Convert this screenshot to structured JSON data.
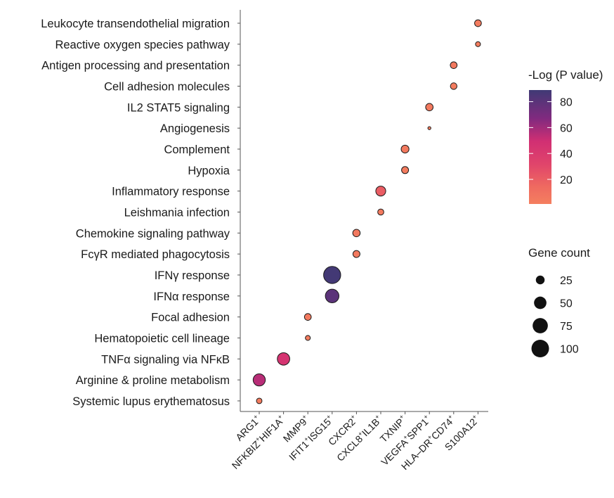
{
  "chart_data": {
    "type": "dotplot",
    "title": "",
    "xlabel": "",
    "ylabel": "",
    "pathways": [
      "Leukocyte transendothelial migration",
      "Reactive oxygen species pathway",
      "Antigen processing and presentation",
      "Cell adhesion molecules",
      "IL2 STAT5 signaling",
      "Angiogenesis",
      "Complement",
      "Hypoxia",
      "Inflammatory response",
      "Leishmania infection",
      "Chemokine signaling pathway",
      "FcγR mediated phagocytosis",
      "IFNγ response",
      "IFNα response",
      "Focal adhesion",
      "Hematopoietic cell lineage",
      "TNFα signaling via NFκB",
      "Arginine & proline metabolism",
      "Systemic lupus erythematosus"
    ],
    "clusters": [
      {
        "label": "ARG1",
        "parts": [
          [
            "ARG1",
            "+"
          ]
        ]
      },
      {
        "label": "NFKBIZ+HIF1A+",
        "parts": [
          [
            "NFKBIZ",
            "+"
          ],
          [
            "HIF1A",
            "+"
          ]
        ]
      },
      {
        "label": "MMP9+",
        "parts": [
          [
            "MMP9",
            "+"
          ]
        ]
      },
      {
        "label": "IFIT1+ISG15+",
        "parts": [
          [
            "IFIT1",
            "+"
          ],
          [
            "ISG15",
            "+"
          ]
        ]
      },
      {
        "label": "CXCR2+",
        "parts": [
          [
            "CXCR2",
            "+"
          ]
        ]
      },
      {
        "label": "CXCL8+IL1B+",
        "parts": [
          [
            "CXCL8",
            "+"
          ],
          [
            "IL1B",
            "+"
          ]
        ]
      },
      {
        "label": "TXNIP+",
        "parts": [
          [
            "TXNIP",
            "+"
          ]
        ]
      },
      {
        "label": "VEGFA+SPP1+",
        "parts": [
          [
            "VEGFA",
            "+"
          ],
          [
            "SPP1",
            "+"
          ]
        ]
      },
      {
        "label": "HLA-DR+CD74+",
        "parts": [
          [
            "HLA–DR",
            "+"
          ],
          [
            "CD74",
            "+"
          ]
        ]
      },
      {
        "label": "S100A12+",
        "parts": [
          [
            "S100A12",
            "+"
          ]
        ]
      }
    ],
    "points": [
      {
        "pathway": "Leukocyte transendothelial migration",
        "cluster": "S100A12+",
        "gene_count": 15,
        "neg_log_p": 3
      },
      {
        "pathway": "Reactive oxygen species pathway",
        "cluster": "S100A12+",
        "gene_count": 8,
        "neg_log_p": 2
      },
      {
        "pathway": "Antigen processing and presentation",
        "cluster": "HLA-DR+CD74+",
        "gene_count": 15,
        "neg_log_p": 5
      },
      {
        "pathway": "Cell adhesion molecules",
        "cluster": "HLA-DR+CD74+",
        "gene_count": 14,
        "neg_log_p": 3
      },
      {
        "pathway": "IL2 STAT5 signaling",
        "cluster": "VEGFA+SPP1+",
        "gene_count": 18,
        "neg_log_p": 4
      },
      {
        "pathway": "Angiogenesis",
        "cluster": "VEGFA+SPP1+",
        "gene_count": 3,
        "neg_log_p": 2
      },
      {
        "pathway": "Complement",
        "cluster": "TXNIP+",
        "gene_count": 20,
        "neg_log_p": 4
      },
      {
        "pathway": "Hypoxia",
        "cluster": "TXNIP+",
        "gene_count": 16,
        "neg_log_p": 3
      },
      {
        "pathway": "Inflammatory response",
        "cluster": "CXCL8+IL1B+",
        "gene_count": 32,
        "neg_log_p": 20
      },
      {
        "pathway": "Leishmania infection",
        "cluster": "CXCL8+IL1B+",
        "gene_count": 12,
        "neg_log_p": 4
      },
      {
        "pathway": "Chemokine signaling pathway",
        "cluster": "CXCR2+",
        "gene_count": 18,
        "neg_log_p": 5
      },
      {
        "pathway": "FcγR mediated phagocytosis",
        "cluster": "CXCR2+",
        "gene_count": 16,
        "neg_log_p": 4
      },
      {
        "pathway": "IFNγ response",
        "cluster": "IFIT1+ISG15+",
        "gene_count": 95,
        "neg_log_p": 88
      },
      {
        "pathway": "IFNα response",
        "cluster": "IFIT1+ISG15+",
        "gene_count": 60,
        "neg_log_p": 80
      },
      {
        "pathway": "Focal adhesion",
        "cluster": "MMP9+",
        "gene_count": 15,
        "neg_log_p": 4
      },
      {
        "pathway": "Hematopoietic cell lineage",
        "cluster": "MMP9+",
        "gene_count": 8,
        "neg_log_p": 3
      },
      {
        "pathway": "TNFα signaling via NFκB",
        "cluster": "NFKBIZ+HIF1A+",
        "gene_count": 50,
        "neg_log_p": 45
      },
      {
        "pathway": "Arginine & proline metabolism",
        "cluster": "ARG1",
        "gene_count": 48,
        "neg_log_p": 55
      },
      {
        "pathway": "Systemic lupus erythematosus",
        "cluster": "ARG1",
        "gene_count": 10,
        "neg_log_p": 3
      }
    ],
    "color_legend": {
      "title": "-Log (P value)",
      "ticks": [
        20,
        40,
        60,
        80
      ],
      "range": [
        1,
        89
      ],
      "low_color": "#f47f5f",
      "mid_color": "#d12f73",
      "high_color": "#403a75"
    },
    "size_legend": {
      "title": "Gene count",
      "values": [
        25,
        50,
        75,
        100
      ]
    },
    "colors": {
      "axis": "#555555",
      "dot_stroke": "#1a1a1a"
    }
  }
}
